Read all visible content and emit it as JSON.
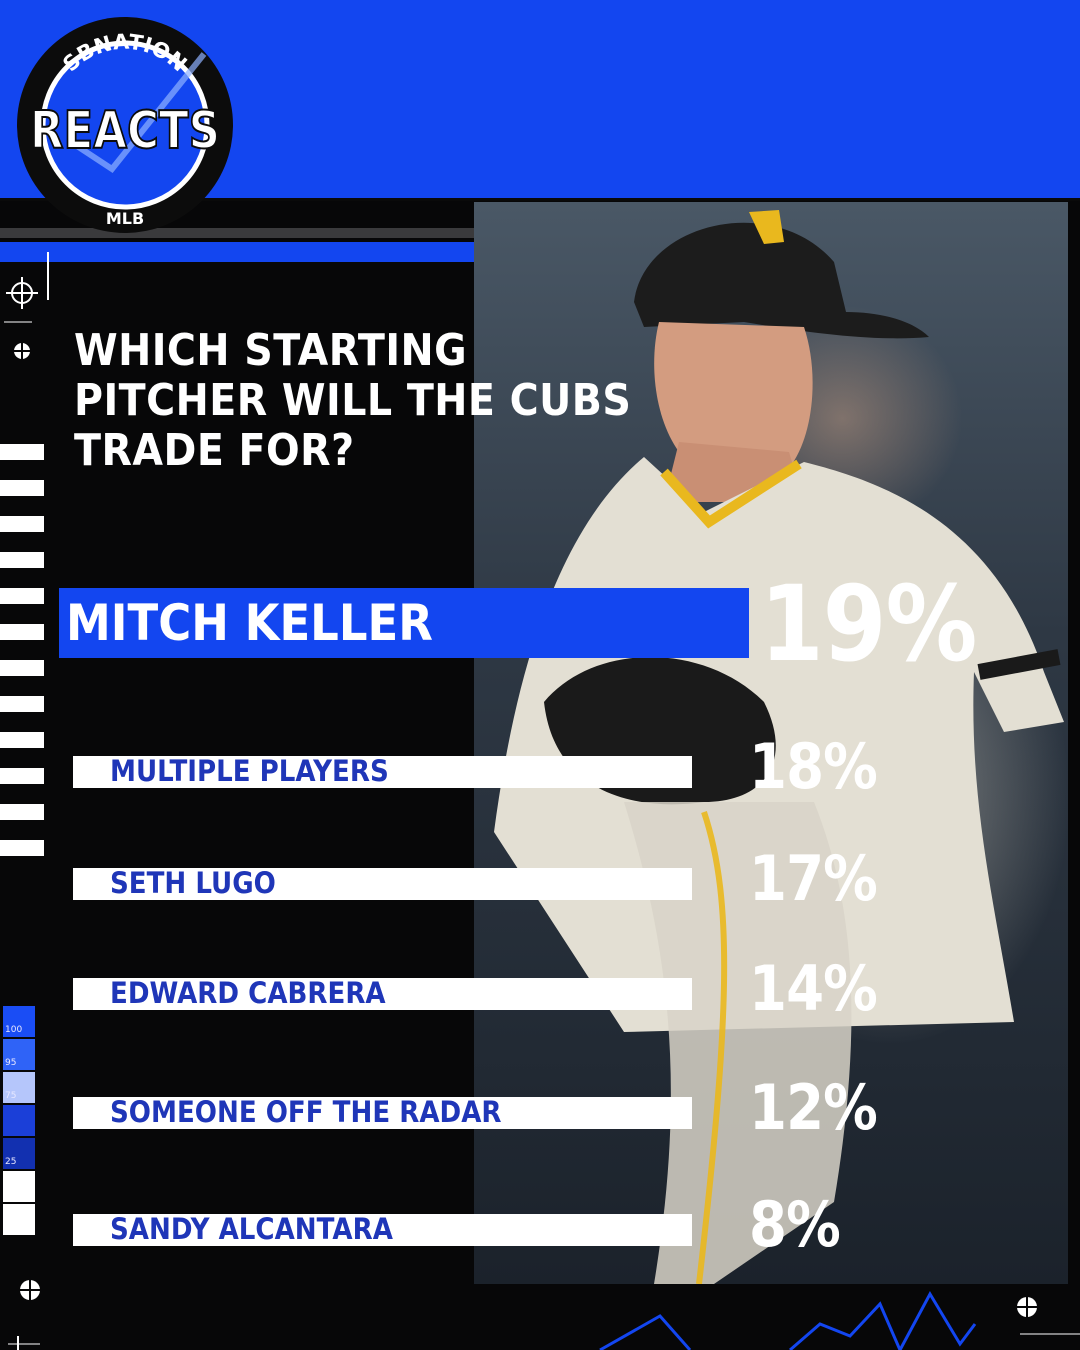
{
  "brand": {
    "logo_top": "SBNATION",
    "logo_main": "REACTS",
    "logo_bottom": "MLB"
  },
  "question_lines": [
    "WHICH STARTING",
    "PITCHER WILL THE CUBS",
    "TRADE FOR?"
  ],
  "scale_labels": [
    "100",
    "95",
    "75",
    "",
    "25",
    "",
    ""
  ],
  "colors": {
    "brand_blue": "#1346f0",
    "bar_label_blue": "#1f36b8",
    "bar_fill": "#ffffff",
    "background": "#070708"
  },
  "chart_data": {
    "type": "bar",
    "orientation": "horizontal",
    "title": "WHICH STARTING PITCHER WILL THE CUBS TRADE FOR?",
    "categories": [
      "MITCH KELLER",
      "MULTIPLE PLAYERS",
      "SETH LUGO",
      "EDWARD CABRERA",
      "SOMEONE OFF THE RADAR",
      "SANDY ALCANTARA"
    ],
    "values": [
      19,
      18,
      17,
      14,
      12,
      8
    ],
    "value_labels": [
      "19%",
      "18%",
      "17%",
      "14%",
      "12%",
      "8%"
    ],
    "unit": "%",
    "highlight_index": 0
  }
}
